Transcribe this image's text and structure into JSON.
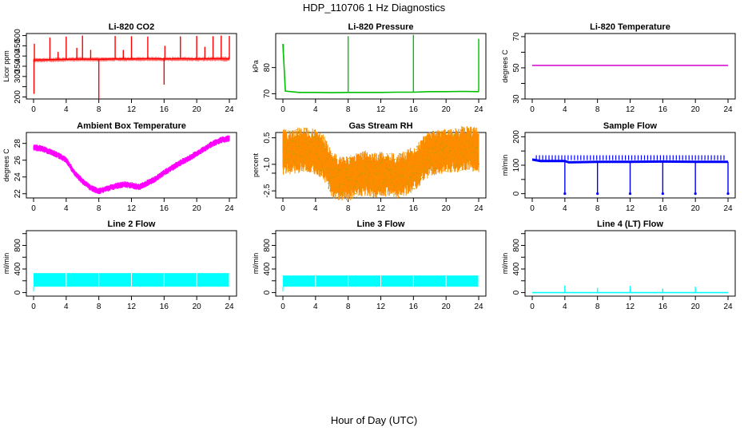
{
  "figure": {
    "title": "HDP_110706  1 Hz Diagnostics",
    "xlabel": "Hour of Day (UTC)"
  },
  "chart_data": [
    {
      "type": "line",
      "title": "Li-820 CO2",
      "ylabel": "Licor ppm",
      "color": "#ff0000",
      "xlim": [
        0,
        24
      ],
      "ylim": [
        190,
        510
      ],
      "xticks": [
        0,
        4,
        8,
        12,
        16,
        20,
        24
      ],
      "yticks": [
        200,
        250,
        300,
        350,
        400,
        450,
        500
      ],
      "ytick_labels": [
        "200",
        "",
        "300",
        "350",
        "400",
        "450",
        "500"
      ],
      "series": [
        {
          "name": "CO2",
          "x": [
            0,
            2,
            4,
            6,
            8,
            10,
            12,
            14,
            16,
            18,
            20,
            22,
            24
          ],
          "values": [
            380,
            382,
            384,
            385,
            384,
            386,
            386,
            387,
            386,
            387,
            386,
            387,
            386
          ]
        }
      ],
      "band": {
        "lo": [
          368,
          370,
          372,
          374,
          372,
          375,
          374,
          375,
          374,
          375,
          374,
          375,
          372
        ],
        "hi": [
          390,
          392,
          394,
          395,
          394,
          395,
          395,
          396,
          395,
          396,
          395,
          396,
          398
        ]
      },
      "spikes": [
        {
          "x": 0.05,
          "value": 215
        },
        {
          "x": 0.1,
          "value": 460
        },
        {
          "x": 2.0,
          "value": 490
        },
        {
          "x": 3.0,
          "value": 420
        },
        {
          "x": 4.0,
          "value": 495
        },
        {
          "x": 5.3,
          "value": 440
        },
        {
          "x": 6.0,
          "value": 500
        },
        {
          "x": 7.0,
          "value": 430
        },
        {
          "x": 8.0,
          "value": 190
        },
        {
          "x": 10.0,
          "value": 498
        },
        {
          "x": 11.0,
          "value": 430
        },
        {
          "x": 12.0,
          "value": 497
        },
        {
          "x": 14.0,
          "value": 495
        },
        {
          "x": 16.0,
          "value": 260
        },
        {
          "x": 16.1,
          "value": 450
        },
        {
          "x": 18.0,
          "value": 496
        },
        {
          "x": 20.0,
          "value": 498
        },
        {
          "x": 21.0,
          "value": 445
        },
        {
          "x": 22.0,
          "value": 497
        },
        {
          "x": 23.0,
          "value": 500
        },
        {
          "x": 24.0,
          "value": 498
        }
      ]
    },
    {
      "type": "line",
      "title": "Li-820 Pressure",
      "ylabel": "kPa",
      "color": "#00c000",
      "xlim": [
        0,
        24
      ],
      "ylim": [
        68,
        93
      ],
      "xticks": [
        0,
        4,
        8,
        12,
        16,
        20,
        24
      ],
      "yticks": [
        70,
        80
      ],
      "ytick_labels": [
        "70",
        "80"
      ],
      "series": [
        {
          "name": "Pressure",
          "x": [
            0,
            0.3,
            2,
            4,
            6,
            8,
            10,
            12,
            14,
            16,
            18,
            20,
            22,
            24
          ],
          "values": [
            89,
            71,
            70.5,
            70.5,
            70.4,
            70.5,
            70.5,
            70.5,
            70.6,
            70.6,
            70.8,
            70.8,
            70.9,
            70.8
          ]
        }
      ],
      "spikes": [
        {
          "x": 0.05,
          "value": 89
        },
        {
          "x": 8.0,
          "value": 92
        },
        {
          "x": 16.0,
          "value": 92.5
        },
        {
          "x": 24.0,
          "value": 91
        }
      ]
    },
    {
      "type": "line",
      "title": "Li-820 Temperature",
      "ylabel": "degrees C",
      "color": "#d400d4",
      "xlim": [
        0,
        24
      ],
      "ylim": [
        30,
        72
      ],
      "xticks": [
        0,
        4,
        8,
        12,
        16,
        20,
        24
      ],
      "yticks": [
        30,
        40,
        50,
        60,
        70
      ],
      "ytick_labels": [
        "30",
        "",
        "50",
        "",
        "70"
      ],
      "series": [
        {
          "name": "Temperature",
          "x": [
            0,
            24
          ],
          "values": [
            51.5,
            51.5
          ]
        }
      ]
    },
    {
      "type": "line",
      "title": "Ambient Box Temperature",
      "ylabel": "degrees C",
      "color": "#ff00ff",
      "xlim": [
        0,
        24
      ],
      "ylim": [
        21.5,
        29.3
      ],
      "xticks": [
        0,
        4,
        8,
        12,
        16,
        20,
        24
      ],
      "yticks": [
        22,
        24,
        26,
        28
      ],
      "ytick_labels": [
        "22",
        "24",
        "26",
        "28"
      ],
      "series": [
        {
          "name": "Box Temp",
          "x": [
            0,
            1,
            2,
            3,
            4,
            5,
            6,
            7,
            8,
            9,
            10,
            11,
            12,
            13,
            14,
            15,
            16,
            17,
            18,
            19,
            20,
            21,
            22,
            23,
            24
          ],
          "values": [
            27.5,
            27.4,
            27.0,
            26.6,
            26.0,
            24.5,
            23.5,
            22.7,
            22.3,
            22.6,
            22.9,
            23.1,
            23.0,
            22.8,
            23.3,
            23.8,
            24.5,
            25.1,
            25.7,
            26.2,
            26.8,
            27.4,
            28.0,
            28.4,
            28.6
          ]
        }
      ],
      "noise": 0.4
    },
    {
      "type": "line",
      "title": "Gas Stream RH",
      "ylabel": "percent",
      "color": "#ff8c00",
      "color2": "#b0a000",
      "xlim": [
        0,
        24
      ],
      "ylim": [
        -2.9,
        0.8
      ],
      "xticks": [
        0,
        4,
        8,
        12,
        16,
        20,
        24
      ],
      "yticks": [
        -2.5,
        -1.5,
        -1.0,
        0.5
      ],
      "ytick_labels": [
        "-2.5",
        "",
        "-1.0",
        "0.5"
      ],
      "series": [
        {
          "name": "RH",
          "x": [
            0,
            1,
            2,
            3,
            4,
            5,
            6,
            7,
            8,
            9,
            10,
            11,
            12,
            13,
            14,
            15,
            16,
            17,
            18,
            19,
            20,
            21,
            22,
            23,
            24
          ],
          "values": [
            -0.3,
            -0.3,
            -0.2,
            -0.2,
            -0.3,
            -0.6,
            -1.6,
            -1.8,
            -1.8,
            -1.6,
            -1.5,
            -1.6,
            -1.6,
            -1.6,
            -1.7,
            -1.5,
            -1.3,
            -0.8,
            -0.4,
            -0.3,
            -0.2,
            -0.2,
            -0.1,
            -0.1,
            -0.2
          ]
        }
      ],
      "noise": 1.3
    },
    {
      "type": "line",
      "title": "Sample Flow",
      "ylabel": "ml/min",
      "color": "#0000ff",
      "xlim": [
        0,
        24
      ],
      "ylim": [
        -15,
        215
      ],
      "xticks": [
        0,
        4,
        8,
        12,
        16,
        20,
        24
      ],
      "yticks": [
        0,
        50,
        100,
        150,
        200
      ],
      "ytick_labels": [
        "0",
        "",
        "100",
        "",
        "200"
      ],
      "series": [
        {
          "name": "Flow",
          "x": [
            0,
            1,
            4,
            4.5,
            8,
            12,
            16,
            20,
            24
          ],
          "values": [
            120,
            115,
            115,
            110,
            112,
            112,
            113,
            112,
            112
          ]
        }
      ],
      "spikes": [
        {
          "x": 4.0,
          "value": 0
        },
        {
          "x": 8.0,
          "value": 0
        },
        {
          "x": 12.0,
          "value": 0
        },
        {
          "x": 16.0,
          "value": 0
        },
        {
          "x": 20.0,
          "value": 0
        },
        {
          "x": 24.0,
          "value": 0
        }
      ]
    },
    {
      "type": "area",
      "title": "Line 2 Flow",
      "ylabel": "ml/min",
      "color": "#00ffff",
      "xlim": [
        0,
        24
      ],
      "ylim": [
        -60,
        1050
      ],
      "xticks": [
        0,
        4,
        8,
        12,
        16,
        20,
        24
      ],
      "yticks": [
        0,
        200,
        400,
        600,
        800,
        1000
      ],
      "ytick_labels": [
        "0",
        "",
        "400",
        "",
        "800",
        ""
      ],
      "band": {
        "lo": 100,
        "hi": 330
      },
      "gaps": [
        4,
        8,
        12,
        16,
        20,
        24
      ]
    },
    {
      "type": "area",
      "title": "Line 3 Flow",
      "ylabel": "ml/min",
      "color": "#00ffff",
      "xlim": [
        0,
        24
      ],
      "ylim": [
        -60,
        1050
      ],
      "xticks": [
        0,
        4,
        8,
        12,
        16,
        20,
        24
      ],
      "yticks": [
        0,
        200,
        400,
        600,
        800,
        1000
      ],
      "ytick_labels": [
        "0",
        "",
        "400",
        "",
        "800",
        ""
      ],
      "band": {
        "lo": 100,
        "hi": 290
      },
      "gaps": [
        4,
        8,
        12,
        16,
        20,
        24
      ]
    },
    {
      "type": "line",
      "title": "Line 4 (LT) Flow",
      "ylabel": "ml/min",
      "color": "#00ffff",
      "xlim": [
        0,
        24
      ],
      "ylim": [
        -60,
        1050
      ],
      "xticks": [
        0,
        4,
        8,
        12,
        16,
        20,
        24
      ],
      "yticks": [
        0,
        200,
        400,
        600,
        800,
        1000
      ],
      "ytick_labels": [
        "0",
        "",
        "400",
        "",
        "800",
        ""
      ],
      "series": [
        {
          "name": "LT Flow",
          "x": [
            0,
            24
          ],
          "values": [
            0,
            0
          ]
        }
      ],
      "spikes": [
        {
          "x": 4.0,
          "value": 120
        },
        {
          "x": 8.0,
          "value": 80
        },
        {
          "x": 12.0,
          "value": 110
        },
        {
          "x": 16.0,
          "value": 70
        },
        {
          "x": 20.0,
          "value": 100
        }
      ]
    }
  ]
}
